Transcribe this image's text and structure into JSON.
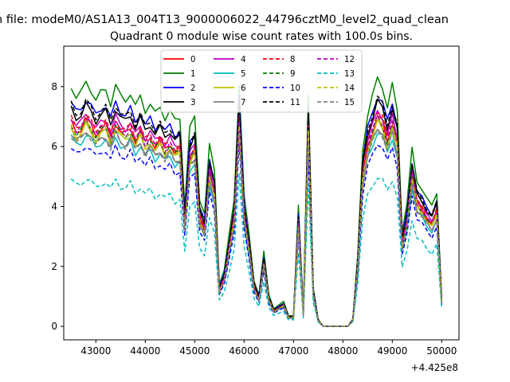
{
  "suptitle": "n file: modeM0/AS1A13_004T13_9000006022_44796cztM0_level2_quad_clean",
  "chart_data": {
    "type": "line",
    "title": "Quadrant 0 module wise count rates with 100.0s bins.",
    "xlabel": "",
    "ylabel": "",
    "x_offset_label": "+4.425e8",
    "xlim": [
      42350,
      50350
    ],
    "ylim": [
      -0.45,
      9.35
    ],
    "xticks": [
      43000,
      44000,
      45000,
      46000,
      47000,
      48000,
      49000,
      50000
    ],
    "xtick_labels": [
      "43000",
      "44000",
      "45000",
      "46000",
      "47000",
      "48000",
      "49000",
      "50000"
    ],
    "yticks": [
      0,
      2,
      4,
      6,
      8
    ],
    "ytick_labels": [
      "0",
      "2",
      "4",
      "6",
      "8"
    ],
    "grid": false,
    "legend": {
      "placement": "top-center",
      "columns": 4
    },
    "x": [
      42500,
      42600,
      42700,
      42800,
      42900,
      43000,
      43100,
      43200,
      43300,
      43400,
      43500,
      43600,
      43700,
      43800,
      43900,
      44000,
      44100,
      44200,
      44300,
      44400,
      44500,
      44600,
      44700,
      44800,
      44900,
      45000,
      45100,
      45200,
      45300,
      45400,
      45500,
      45600,
      45700,
      45800,
      45900,
      46000,
      46100,
      46200,
      46300,
      46400,
      46500,
      46600,
      46700,
      46800,
      46900,
      47000,
      47100,
      47200,
      47300,
      47400,
      47500,
      47600,
      47700,
      47800,
      47900,
      48000,
      48100,
      48200,
      48300,
      48400,
      48500,
      48600,
      48700,
      48800,
      48900,
      49000,
      49100,
      49200,
      49300,
      49400,
      49500,
      49600,
      49700,
      49800,
      49900,
      50000
    ],
    "base": [
      6.8,
      6.5,
      6.6,
      6.9,
      6.7,
      6.4,
      6.6,
      6.7,
      6.3,
      6.8,
      6.5,
      6.4,
      6.6,
      6.2,
      6.5,
      6.1,
      6.3,
      6.0,
      6.2,
      5.9,
      6.1,
      5.8,
      5.9,
      3.4,
      5.6,
      5.9,
      3.6,
      3.2,
      5.1,
      4.4,
      1.2,
      1.6,
      2.6,
      3.6,
      6.9,
      3.7,
      2.6,
      1.3,
      0.9,
      2.1,
      0.9,
      0.5,
      0.6,
      0.7,
      0.3,
      0.3,
      3.4,
      0.4,
      6.6,
      1.1,
      0.2,
      0.0,
      0.0,
      0.0,
      0.0,
      0.0,
      0.0,
      0.2,
      2.0,
      5.0,
      6.0,
      6.5,
      7.0,
      6.8,
      6.2,
      6.8,
      6.1,
      2.7,
      3.5,
      5.0,
      4.1,
      3.9,
      3.6,
      3.4,
      3.8,
      0.8
    ],
    "series": [
      {
        "name": "0",
        "color": "#ff0000",
        "dash": "solid",
        "scale": 1.0
      },
      {
        "name": "1",
        "color": "#008000",
        "dash": "solid",
        "scale": 1.18
      },
      {
        "name": "2",
        "color": "#0000ff",
        "dash": "solid",
        "scale": 1.1
      },
      {
        "name": "3",
        "color": "#000000",
        "dash": "solid",
        "scale": 1.07
      },
      {
        "name": "4",
        "color": "#bf00bf",
        "dash": "solid",
        "scale": 1.03
      },
      {
        "name": "5",
        "color": "#00bfbf",
        "dash": "solid",
        "scale": 0.93
      },
      {
        "name": "6",
        "color": "#bfbf00",
        "dash": "solid",
        "scale": 0.97
      },
      {
        "name": "7",
        "color": "#808080",
        "dash": "solid",
        "scale": 0.95
      },
      {
        "name": "8",
        "color": "#ff0000",
        "dash": "dashed",
        "scale": 1.02
      },
      {
        "name": "9",
        "color": "#008000",
        "dash": "dashed",
        "scale": 0.99
      },
      {
        "name": "10",
        "color": "#0000ff",
        "dash": "dashed",
        "scale": 0.88
      },
      {
        "name": "11",
        "color": "#000000",
        "dash": "dashed",
        "scale": 1.09
      },
      {
        "name": "12",
        "color": "#bf00bf",
        "dash": "dashed",
        "scale": 1.0
      },
      {
        "name": "13",
        "color": "#00bfbf",
        "dash": "dashed",
        "scale": 0.72
      },
      {
        "name": "14",
        "color": "#bfbf00",
        "dash": "dashed",
        "scale": 0.98
      },
      {
        "name": "15",
        "color": "#808080",
        "dash": "dashed",
        "scale": 0.94
      }
    ]
  }
}
